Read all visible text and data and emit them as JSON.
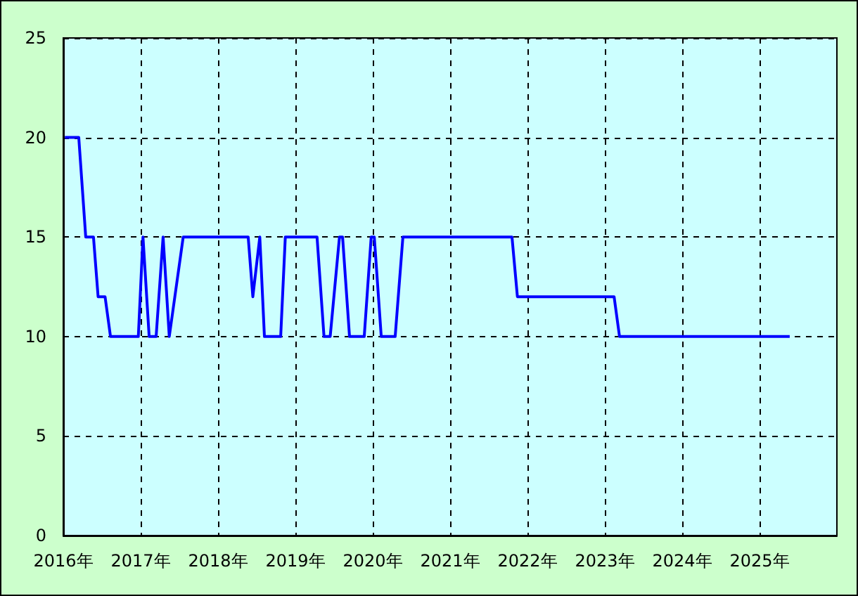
{
  "chart_data": {
    "type": "line",
    "color": "#0000ff",
    "x": [
      2016.02,
      2016.2,
      2016.29,
      2016.39,
      2016.45,
      2016.54,
      2016.61,
      2016.97,
      2017.03,
      2017.11,
      2017.2,
      2017.29,
      2017.37,
      2017.55,
      2018.39,
      2018.45,
      2018.54,
      2018.6,
      2018.81,
      2018.87,
      2019.28,
      2019.37,
      2019.45,
      2019.57,
      2019.61,
      2019.7,
      2019.89,
      2019.98,
      2020.02,
      2020.11,
      2020.29,
      2020.39,
      2021.8,
      2021.87,
      2023.12,
      2023.19,
      2025.39
    ],
    "values": [
      20,
      20,
      15,
      15,
      12,
      12,
      10,
      10,
      15,
      10,
      10,
      15,
      10,
      15,
      15,
      12,
      15,
      10,
      10,
      15,
      15,
      10,
      10,
      15,
      15,
      10,
      10,
      15,
      15,
      10,
      10,
      15,
      15,
      12,
      12,
      10,
      10
    ],
    "xlim": [
      2016,
      2026
    ],
    "xticks": [
      {
        "value": 2016,
        "label": "2016年"
      },
      {
        "value": 2017,
        "label": "2017年"
      },
      {
        "value": 2018,
        "label": "2018年"
      },
      {
        "value": 2019,
        "label": "2019年"
      },
      {
        "value": 2020,
        "label": "2020年"
      },
      {
        "value": 2021,
        "label": "2021年"
      },
      {
        "value": 2022,
        "label": "2022年"
      },
      {
        "value": 2023,
        "label": "2023年"
      },
      {
        "value": 2024,
        "label": "2024年"
      },
      {
        "value": 2025,
        "label": "2025年"
      }
    ],
    "ylim": [
      0,
      25
    ],
    "yticks": [
      0,
      5,
      10,
      15,
      20,
      25
    ],
    "grid": true
  }
}
